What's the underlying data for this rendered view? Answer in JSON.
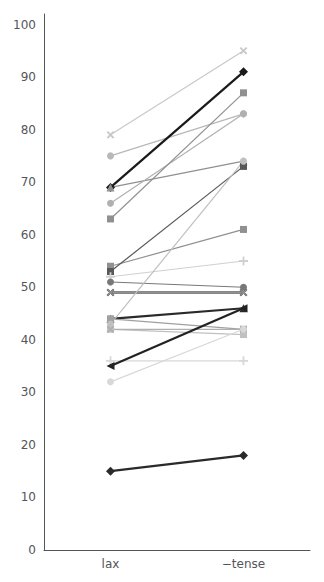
{
  "chart_data": {
    "type": "line",
    "categories": [
      "lax",
      "−tense"
    ],
    "series": [
      {
        "color": "#c8c8c8",
        "marker": "x",
        "values": [
          79,
          95
        ]
      },
      {
        "color": "#b8b8b8",
        "marker": "circle",
        "values": [
          75,
          83
        ]
      },
      {
        "color": "#1a1a1a",
        "marker": "diamond",
        "values": [
          69,
          91
        ]
      },
      {
        "color": "#909090",
        "marker": "triangle-up",
        "values": [
          69,
          74
        ]
      },
      {
        "color": "#b0b0b0",
        "marker": "circle",
        "values": [
          66,
          83
        ]
      },
      {
        "color": "#909090",
        "marker": "square",
        "values": [
          63,
          87
        ]
      },
      {
        "color": "#909090",
        "marker": "square",
        "values": [
          54,
          61
        ]
      },
      {
        "color": "#585858",
        "marker": "square",
        "values": [
          53,
          73
        ]
      },
      {
        "color": "#d0d0d0",
        "marker": "plus",
        "values": [
          52,
          55
        ]
      },
      {
        "color": "#787878",
        "marker": "circle",
        "values": [
          51,
          50
        ]
      },
      {
        "color": "#111111",
        "marker": "x",
        "values": [
          49,
          49
        ]
      },
      {
        "color": "#909090",
        "marker": "x",
        "values": [
          49,
          49
        ]
      },
      {
        "color": "#2a2a2a",
        "marker": "triangle-up",
        "values": [
          44,
          46
        ]
      },
      {
        "color": "#a0a0a0",
        "marker": "square",
        "values": [
          44,
          42
        ]
      },
      {
        "color": "#c0c0c0",
        "marker": "circle",
        "values": [
          43,
          74
        ]
      },
      {
        "color": "#c0c0c0",
        "marker": "square",
        "values": [
          42,
          41
        ]
      },
      {
        "color": "#b0b0b0",
        "marker": "x",
        "values": [
          42,
          42
        ]
      },
      {
        "color": "#d8d8d8",
        "marker": "plus",
        "values": [
          36,
          36
        ]
      },
      {
        "color": "#222222",
        "marker": "triangle-left",
        "values": [
          35,
          46
        ]
      },
      {
        "color": "#d8d8d8",
        "marker": "circle",
        "values": [
          32,
          42
        ]
      },
      {
        "color": "#2a2a2a",
        "marker": "diamond",
        "values": [
          15,
          18
        ]
      }
    ],
    "ylim": [
      0,
      102
    ],
    "yticks": [
      0,
      10,
      20,
      30,
      40,
      50,
      60,
      70,
      80,
      90,
      100
    ],
    "grid": false
  }
}
